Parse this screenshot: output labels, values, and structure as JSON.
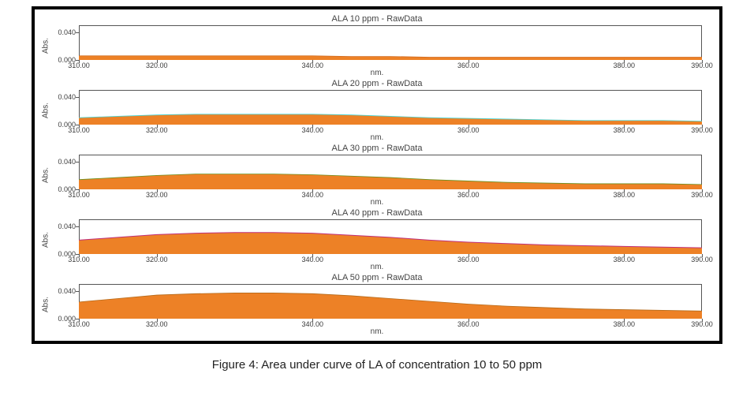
{
  "caption": "Figure 4: Area under curve of LA of concentration 10 to 50 ppm",
  "colors": {
    "frame_border": "#000000",
    "background": "#ffffff",
    "axis_line": "#555555",
    "text": "#3a3a3a",
    "title_text": "#444444"
  },
  "common": {
    "x_axis": {
      "min": 310.0,
      "max": 390.0,
      "ticks": [
        310.0,
        320.0,
        340.0,
        360.0,
        380.0,
        390.0
      ],
      "tick_labels": [
        "310.00",
        "320.00",
        "340.00",
        "360.00",
        "380.00",
        "390.00"
      ],
      "label": "nm.",
      "label_fontsize": 10,
      "tick_fontsize": 9
    },
    "y_axis": {
      "min": 0.0,
      "max": 0.05,
      "ticks": [
        0.0,
        0.04
      ],
      "tick_labels": [
        "0.000",
        "0.040"
      ],
      "label": "Abs.",
      "label_fontsize": 10,
      "tick_fontsize": 9
    },
    "fill_color": "#ed8126",
    "fill_opacity": 1.0
  },
  "panels": [
    {
      "title": "ALA 10 ppm - RawData",
      "stroke_color": "#d06a1f",
      "stroke_width": 0.8,
      "data": {
        "x": [
          310,
          315,
          320,
          325,
          330,
          335,
          340,
          345,
          350,
          355,
          360,
          365,
          370,
          375,
          380,
          385,
          390
        ],
        "y": [
          0.006,
          0.006,
          0.006,
          0.006,
          0.006,
          0.006,
          0.006,
          0.005,
          0.005,
          0.004,
          0.004,
          0.004,
          0.004,
          0.004,
          0.004,
          0.004,
          0.004
        ]
      }
    },
    {
      "title": "ALA 20 ppm - RawData",
      "stroke_color": "#46d4d4",
      "stroke_width": 0.8,
      "data": {
        "x": [
          310,
          315,
          320,
          325,
          330,
          335,
          340,
          345,
          350,
          355,
          360,
          365,
          370,
          375,
          380,
          385,
          390
        ],
        "y": [
          0.01,
          0.012,
          0.014,
          0.015,
          0.015,
          0.015,
          0.015,
          0.014,
          0.012,
          0.01,
          0.009,
          0.008,
          0.007,
          0.006,
          0.006,
          0.006,
          0.005
        ]
      }
    },
    {
      "title": "ALA 30 ppm - RawData",
      "stroke_color": "#6a8f1f",
      "stroke_width": 0.8,
      "data": {
        "x": [
          310,
          315,
          320,
          325,
          330,
          335,
          340,
          345,
          350,
          355,
          360,
          365,
          370,
          375,
          380,
          385,
          390
        ],
        "y": [
          0.014,
          0.017,
          0.02,
          0.022,
          0.022,
          0.022,
          0.021,
          0.019,
          0.017,
          0.014,
          0.012,
          0.01,
          0.009,
          0.008,
          0.008,
          0.008,
          0.007
        ]
      }
    },
    {
      "title": "ALA 40 ppm - RawData",
      "stroke_color": "#c02f7a",
      "stroke_width": 1.0,
      "data": {
        "x": [
          310,
          315,
          320,
          325,
          330,
          335,
          340,
          345,
          350,
          355,
          360,
          365,
          370,
          375,
          380,
          385,
          390
        ],
        "y": [
          0.02,
          0.024,
          0.028,
          0.03,
          0.031,
          0.031,
          0.03,
          0.027,
          0.024,
          0.02,
          0.017,
          0.015,
          0.013,
          0.012,
          0.011,
          0.01,
          0.009
        ]
      }
    },
    {
      "title": "ALA 50 ppm - RawData",
      "stroke_color": "#b56a1a",
      "stroke_width": 0.8,
      "data": {
        "x": [
          310,
          315,
          320,
          325,
          330,
          335,
          340,
          345,
          350,
          355,
          360,
          365,
          370,
          375,
          380,
          385,
          390
        ],
        "y": [
          0.024,
          0.029,
          0.034,
          0.036,
          0.037,
          0.037,
          0.036,
          0.033,
          0.029,
          0.025,
          0.021,
          0.018,
          0.016,
          0.014,
          0.013,
          0.012,
          0.011
        ]
      }
    }
  ]
}
